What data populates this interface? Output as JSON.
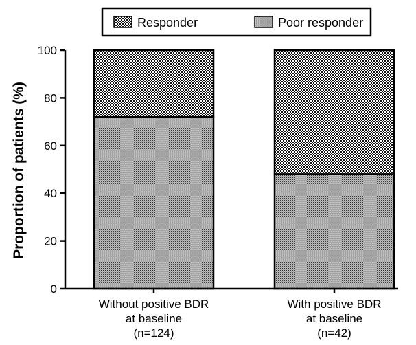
{
  "chart_data": {
    "type": "bar",
    "stacked": true,
    "categories": [
      [
        "Without positive BDR",
        "at baseline",
        "(n=124)"
      ],
      [
        "With positive BDR",
        "at baseline",
        "(n=42)"
      ]
    ],
    "series": [
      {
        "name": "Poor responder",
        "values": [
          72,
          48
        ],
        "pattern": "fine-dots"
      },
      {
        "name": "Responder",
        "values": [
          28,
          52
        ],
        "pattern": "checker"
      }
    ],
    "legend_order": [
      "Responder",
      "Poor responder"
    ],
    "legend_position": "top-center",
    "ylabel": "Proportion of patients (%)",
    "xlabel": "",
    "ylim": [
      0,
      100
    ],
    "yticks": [
      0,
      20,
      40,
      60,
      80,
      100
    ],
    "grid": false
  }
}
